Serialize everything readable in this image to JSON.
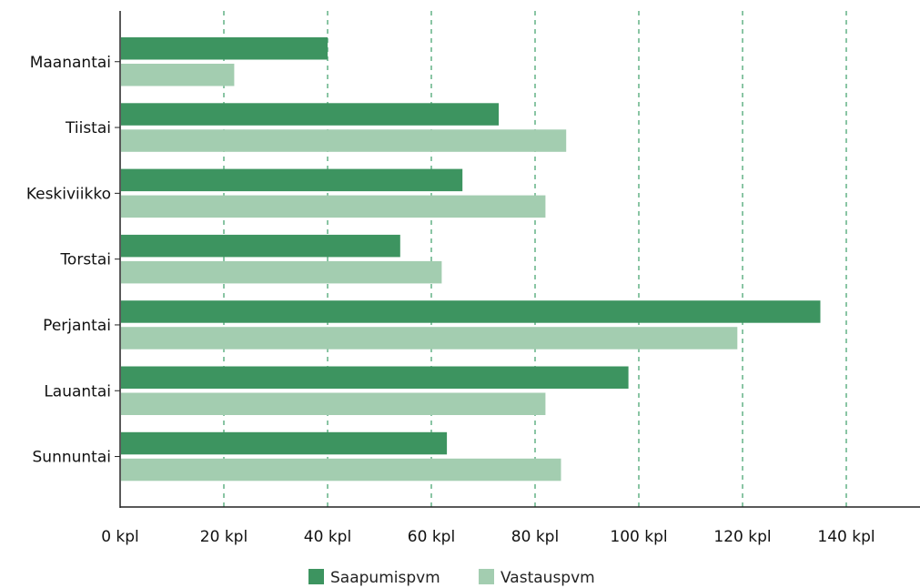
{
  "chart_data": {
    "type": "bar",
    "orientation": "horizontal",
    "title": "",
    "xlabel": "",
    "ylabel": "",
    "categories": [
      "Maanantai",
      "Tiistai",
      "Keskiviikko",
      "Torstai",
      "Perjantai",
      "Lauantai",
      "Sunnuntai"
    ],
    "series": [
      {
        "name": "Saapumispvm",
        "color": "#3d9460",
        "values": [
          40,
          73,
          66,
          54,
          135,
          98,
          63
        ]
      },
      {
        "name": "Vastauspvm",
        "color": "#a3cdb0",
        "values": [
          22,
          86,
          82,
          62,
          119,
          82,
          85
        ]
      }
    ],
    "xlim": [
      0,
      154
    ],
    "xticks": [
      0,
      20,
      40,
      60,
      80,
      100,
      120,
      140
    ],
    "xtick_labels": [
      "0 kpl",
      "20 kpl",
      "40 kpl",
      "60 kpl",
      "80 kpl",
      "100 kpl",
      "120 kpl",
      "140 kpl"
    ],
    "grid": "vertical-dashed",
    "grid_color": "#4aa673",
    "legend_position": "bottom-center"
  }
}
